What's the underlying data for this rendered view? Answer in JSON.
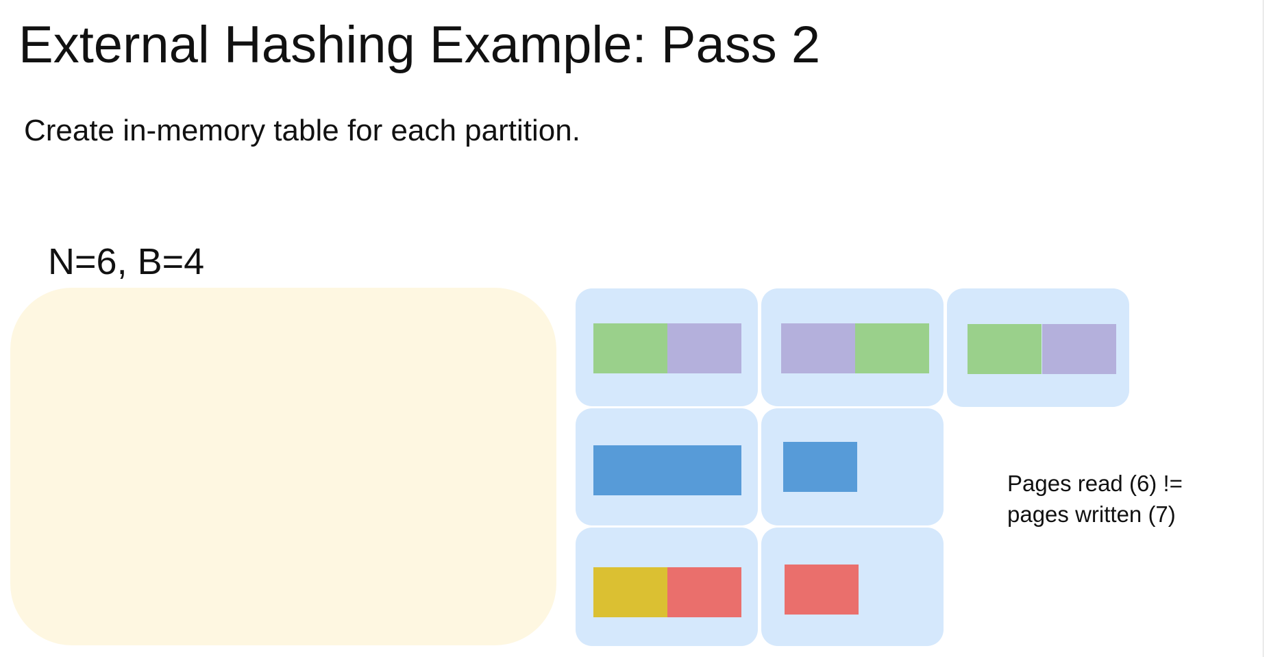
{
  "slide": {
    "title": "External Hashing Example: Pass 2",
    "subtitle": "Create in-memory table for each partition.",
    "params": "N=6, B=4",
    "note_line1": "Pages read (6) !=",
    "note_line2": "pages written (7)"
  },
  "colors": {
    "memory_fill": "#fef7e1",
    "partition_fill": "#d5e8fc",
    "green": "#9ad08b",
    "purple": "#b4b0dc",
    "blue": "#579bd8",
    "yellow": "#dbc032",
    "red": "#ea6f6c"
  },
  "partitions": [
    {
      "pages": [
        "green",
        "purple"
      ]
    },
    {
      "pages": [
        "purple",
        "green"
      ]
    },
    {
      "pages": [
        "green",
        "purple"
      ]
    },
    {
      "pages": [
        "blue",
        "blue"
      ]
    },
    {
      "pages": [
        "blue"
      ]
    },
    {
      "pages": [
        "yellow",
        "red"
      ]
    },
    {
      "pages": [
        "red"
      ]
    }
  ]
}
